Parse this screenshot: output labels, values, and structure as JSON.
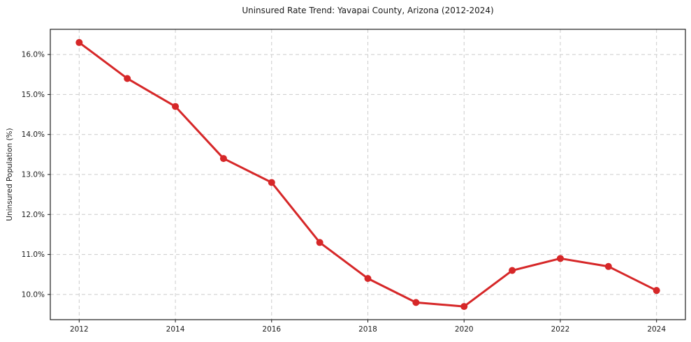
{
  "page": {
    "background_color": "#ffffff"
  },
  "chart_data": {
    "type": "line",
    "title": "Uninsured Rate Trend: Yavapai County, Arizona (2012-2024)",
    "xlabel": "",
    "ylabel": "Uninsured Population (%)",
    "x": [
      2012,
      2013,
      2014,
      2015,
      2016,
      2017,
      2018,
      2019,
      2020,
      2021,
      2022,
      2023,
      2024
    ],
    "y": [
      16.3,
      15.4,
      14.7,
      13.4,
      12.8,
      11.3,
      10.4,
      9.8,
      9.7,
      10.6,
      10.9,
      10.7,
      10.1
    ],
    "y_unit": "%",
    "xlim": [
      2011.4,
      2024.6
    ],
    "ylim": [
      9.37,
      16.63
    ],
    "xticks": {
      "values": [
        2012,
        2014,
        2016,
        2018,
        2020,
        2022,
        2024
      ],
      "labels": [
        "2012",
        "2014",
        "2016",
        "2018",
        "2020",
        "2022",
        "2024"
      ]
    },
    "yticks": {
      "values": [
        10,
        11,
        12,
        13,
        14,
        15,
        16
      ],
      "labels": [
        "10.0%",
        "11.0%",
        "12.0%",
        "13.0%",
        "14.0%",
        "15.0%",
        "16.0%"
      ]
    },
    "grid": {
      "show": true,
      "color": "#cccccc",
      "style": "dashed"
    },
    "legend": {
      "show": false
    },
    "style": {
      "line_color": "#d62728",
      "marker": "circle",
      "marker_color": "#d62728",
      "line_width": 3,
      "marker_radius": 5,
      "frame_color": "#1a1a1a",
      "tick_color": "#1a1a1a",
      "text_color": "#1a1a1a"
    }
  }
}
